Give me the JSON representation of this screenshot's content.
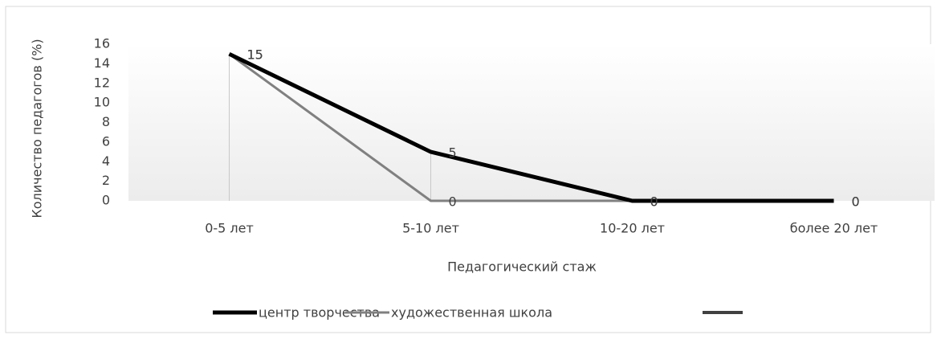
{
  "chart_data": {
    "type": "line",
    "x_label": "Педагогический стаж",
    "y_label": "Количество педагогов (%)",
    "categories": [
      "0-5 лет",
      "5-10 лет",
      "10-20 лет",
      "более 20 лет"
    ],
    "series": [
      {
        "name": "центр творчества",
        "color": "#000000",
        "values": [
          15,
          5,
          0,
          0
        ]
      },
      {
        "name": "художественная школа",
        "color": "#808080",
        "values": [
          15,
          0,
          0,
          0
        ]
      }
    ],
    "ylim": [
      0,
      16
    ],
    "yticks": [
      0,
      2,
      4,
      6,
      8,
      10,
      12,
      14,
      16
    ],
    "drop_lines": true,
    "data_labels": true
  }
}
